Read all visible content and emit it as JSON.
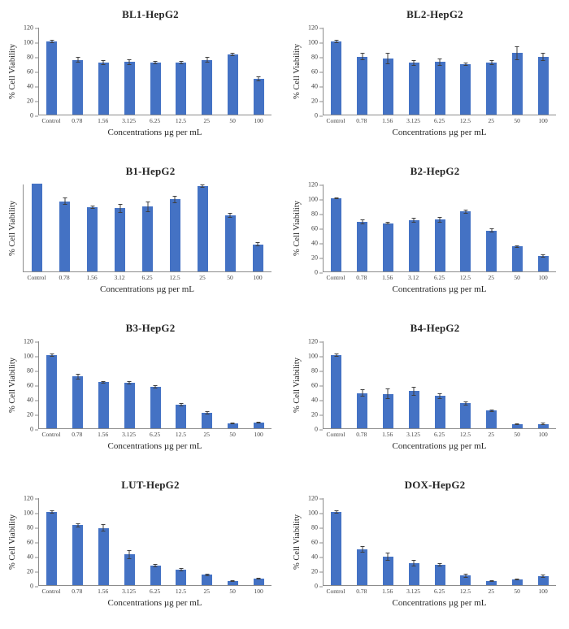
{
  "figure": {
    "description_title": "Cell viability bar charts (HepG2)"
  },
  "chart_data": [
    {
      "type": "bar",
      "title": "BL1-HepG2",
      "categories": [
        "Control",
        "0.78",
        "1.56",
        "3.125",
        "6.25",
        "12.5",
        "25",
        "50",
        "100"
      ],
      "values": [
        100,
        75,
        71,
        72,
        71,
        71,
        75,
        82,
        49
      ],
      "errors": [
        2,
        4,
        3,
        4,
        2,
        2,
        4,
        2,
        3
      ],
      "xlabel": "Concentrations µg per mL",
      "ylabel": "% Cell Viability",
      "ylim": [
        0,
        120
      ],
      "yticks": [
        0,
        20,
        40,
        60,
        80,
        100,
        120
      ],
      "show_yticklabels": true,
      "bar_color": "#4472c4",
      "grid": false,
      "legend": "none"
    },
    {
      "type": "bar",
      "title": "BL2-HepG2",
      "categories": [
        "Control",
        "0.78",
        "1.56",
        "3.125",
        "6.25",
        "12.5",
        "25",
        "50",
        "100"
      ],
      "values": [
        100,
        79,
        77,
        71,
        72,
        69,
        71,
        84,
        79
      ],
      "errors": [
        2,
        5,
        8,
        4,
        5,
        2,
        3,
        9,
        6
      ],
      "xlabel": "Concentrations µg per mL",
      "ylabel": "% Cell Viability",
      "ylim": [
        0,
        120
      ],
      "yticks": [
        0,
        20,
        40,
        60,
        80,
        100,
        120
      ],
      "show_yticklabels": true,
      "bar_color": "#4472c4",
      "grid": false,
      "legend": "none"
    },
    {
      "type": "bar",
      "title": "B1-HepG2",
      "categories": [
        "Control",
        "0.78",
        "1.56",
        "3.12",
        "6.25",
        "12.5",
        "25",
        "50",
        "100"
      ],
      "values": [
        100,
        80,
        73,
        72,
        74,
        82,
        97,
        64,
        31
      ],
      "errors": [
        0,
        4,
        2,
        5,
        6,
        4,
        2,
        3,
        2
      ],
      "xlabel": "Concentrations µg per mL",
      "ylabel": "% Cell Viability",
      "ylim": [
        0,
        100
      ],
      "yticks": [],
      "show_yticklabels": false,
      "bar_color": "#4472c4",
      "grid": false,
      "legend": "none"
    },
    {
      "type": "bar",
      "title": "B2-HepG2",
      "categories": [
        "Control",
        "0.78",
        "1.56",
        "3.12",
        "6.25",
        "12.5",
        "25",
        "50",
        "100"
      ],
      "values": [
        100,
        68,
        66,
        70,
        71,
        82,
        56,
        34,
        21
      ],
      "errors": [
        1,
        3,
        2,
        3,
        4,
        3,
        3,
        2,
        2
      ],
      "xlabel": "Concentrations µg per mL",
      "ylabel": "% Cell Viability",
      "ylim": [
        0,
        120
      ],
      "yticks": [
        0,
        20,
        40,
        60,
        80,
        100,
        120
      ],
      "show_yticklabels": true,
      "bar_color": "#4472c4",
      "grid": false,
      "legend": "none"
    },
    {
      "type": "bar",
      "title": "B3-HepG2",
      "categories": [
        "Control",
        "0.78",
        "1.56",
        "3.125",
        "6.25",
        "12.5",
        "25",
        "50",
        "100"
      ],
      "values": [
        100,
        71,
        63,
        62,
        57,
        32,
        21,
        7,
        8
      ],
      "errors": [
        2,
        4,
        2,
        2,
        2,
        2,
        2,
        1,
        1
      ],
      "xlabel": "Concentrations µg per mL",
      "ylabel": "% Cell Viability",
      "ylim": [
        0,
        120
      ],
      "yticks": [
        0,
        20,
        40,
        60,
        80,
        100,
        120
      ],
      "show_yticklabels": true,
      "bar_color": "#4472c4",
      "grid": false,
      "legend": "none"
    },
    {
      "type": "bar",
      "title": "B4-HepG2",
      "categories": [
        "Control",
        "0.78",
        "1.56",
        "3.125",
        "6.25",
        "12.5",
        "25",
        "50",
        "100"
      ],
      "values": [
        100,
        48,
        47,
        51,
        44,
        34,
        24,
        6,
        6
      ],
      "errors": [
        2,
        5,
        7,
        6,
        4,
        3,
        2,
        1,
        2
      ],
      "xlabel": "Concentrations µg per mL",
      "ylabel": "% Cell Viability",
      "ylim": [
        0,
        120
      ],
      "yticks": [
        0,
        20,
        40,
        60,
        80,
        100,
        120
      ],
      "show_yticklabels": true,
      "bar_color": "#4472c4",
      "grid": false,
      "legend": "none"
    },
    {
      "type": "bar",
      "title": "LUT-HepG2",
      "categories": [
        "Control",
        "0.78",
        "1.56",
        "3.125",
        "6.25",
        "12.5",
        "25",
        "50",
        "100"
      ],
      "values": [
        100,
        82,
        78,
        42,
        27,
        21,
        14,
        6,
        9
      ],
      "errors": [
        2,
        3,
        5,
        6,
        2,
        2,
        2,
        1,
        1
      ],
      "xlabel": "Concentrations µg per mL",
      "ylabel": "% Cell Viability",
      "ylim": [
        0,
        120
      ],
      "yticks": [
        0,
        20,
        40,
        60,
        80,
        100,
        120
      ],
      "show_yticklabels": true,
      "bar_color": "#4472c4",
      "grid": false,
      "legend": "none"
    },
    {
      "type": "bar",
      "title": "DOX-HepG2",
      "categories": [
        "Control",
        "0.78",
        "1.56",
        "3.125",
        "6.25",
        "12.5",
        "25",
        "50",
        "100"
      ],
      "values": [
        100,
        49,
        39,
        30,
        28,
        13,
        6,
        8,
        12
      ],
      "errors": [
        2,
        4,
        6,
        4,
        2,
        3,
        1,
        1,
        2
      ],
      "xlabel": "Concentrations µg per mL",
      "ylabel": "% Cell Viability",
      "ylim": [
        0,
        120
      ],
      "yticks": [
        0,
        20,
        40,
        60,
        80,
        100,
        120
      ],
      "show_yticklabels": true,
      "bar_color": "#4472c4",
      "grid": false,
      "legend": "none"
    }
  ]
}
